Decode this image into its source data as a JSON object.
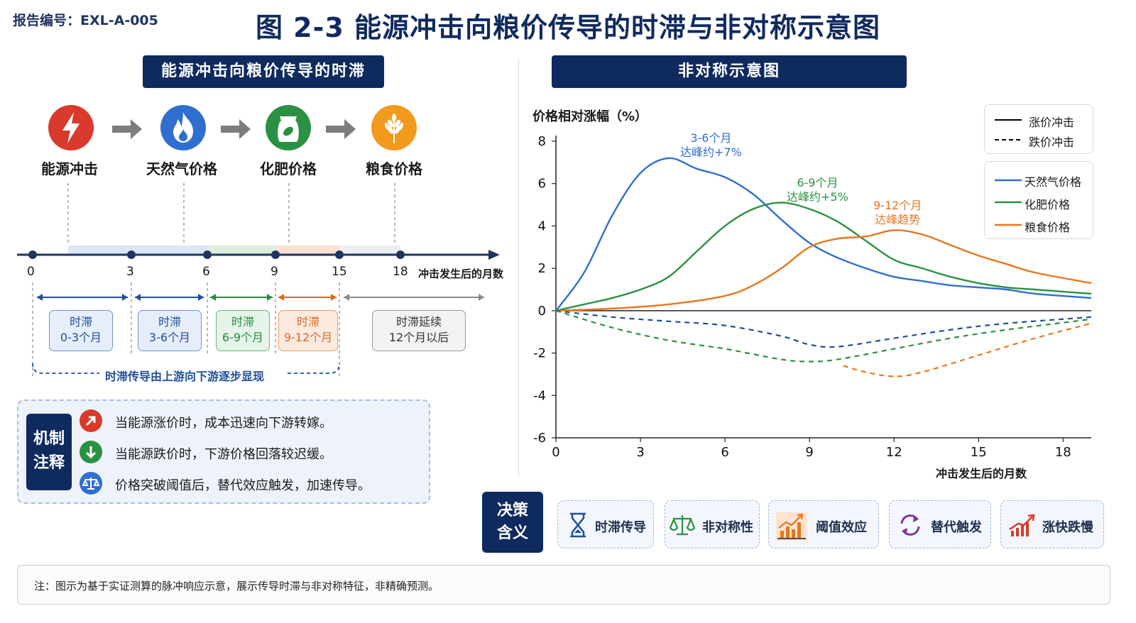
{
  "header": {
    "report_no": "报告编号：EXL-A-005",
    "title": "图 2-3 能源冲击向粮价传导的时滞与非对称示意图"
  },
  "left": {
    "banner": "能源冲击向粮价传导的时滞",
    "stages": [
      {
        "label": "能源冲击",
        "icon": "lightning-icon",
        "color": "#d93a2b"
      },
      {
        "label": "天然气价格",
        "icon": "flame-icon",
        "color": "#2f6fcf"
      },
      {
        "label": "化肥价格",
        "icon": "fertilizer-bag-icon",
        "color": "#2b9142"
      },
      {
        "label": "粮食价格",
        "icon": "wheat-icon",
        "color": "#f29a1c"
      }
    ],
    "timeline": {
      "ticks": [
        "0",
        "3",
        "6",
        "9",
        "15",
        "18"
      ],
      "axis_label": "冲击发生后的月数"
    },
    "lags": [
      {
        "line1": "时滞",
        "line2": "0-3个月",
        "color": "#1f4f9a"
      },
      {
        "line1": "时滞",
        "line2": "3-6个月",
        "color": "#1f4f9a"
      },
      {
        "line1": "时滞",
        "line2": "6-9个月",
        "color": "#2b8a3e"
      },
      {
        "line1": "时滞",
        "line2": "9-12个月",
        "color": "#d9691f"
      },
      {
        "line1": "时滞延续",
        "line2": "12个月以后",
        "color": "#333333"
      }
    ],
    "brace_label": "时滞传导由上游向下游逐步显现",
    "mechanism": {
      "label_line1": "机制",
      "label_line2": "注释",
      "items": [
        {
          "text": "当能源涨价时，成本迅速向下游转嫁。",
          "icon": "arrow-up-icon",
          "color": "#d93a2b"
        },
        {
          "text": "当能源跌价时，下游价格回落较迟缓。",
          "icon": "arrow-down-icon",
          "color": "#2b9142"
        },
        {
          "text": "价格突破阈值后，替代效应触发，加速传导。",
          "icon": "balance-scale-icon",
          "color": "#2f6fcf"
        }
      ]
    }
  },
  "right": {
    "banner": "非对称示意图",
    "legend_style": [
      {
        "label": "涨价冲击",
        "style": "solid"
      },
      {
        "label": "跌价冲击",
        "style": "dashed"
      }
    ],
    "annotations": [
      {
        "line1": "3-6个月",
        "line2": "达峰约+7%",
        "color": "#2f6fcf"
      },
      {
        "line1": "6-9个月",
        "line2": "达峰约+5%",
        "color": "#2b9142"
      },
      {
        "line1": "9-12个月",
        "line2": "达峰趋势",
        "color": "#e8761f"
      }
    ]
  },
  "chart_data": {
    "type": "line",
    "ylabel": "价格相对涨幅（%）",
    "xlabel": "冲击发生后的月数",
    "xlim": [
      0,
      19
    ],
    "ylim": [
      -6,
      8
    ],
    "xticks": [
      0,
      3,
      6,
      9,
      12,
      15,
      18
    ],
    "yticks": [
      8,
      6,
      4,
      2,
      0,
      -2,
      -4,
      -6
    ],
    "legend_position": "top-right",
    "series": [
      {
        "name": "天然气价格",
        "style": "solid",
        "color": "#2f6fcf",
        "points": [
          [
            0,
            0
          ],
          [
            1,
            1.8
          ],
          [
            2,
            4.5
          ],
          [
            3,
            6.5
          ],
          [
            4,
            7.2
          ],
          [
            5,
            6.7
          ],
          [
            6,
            6.3
          ],
          [
            7,
            5.5
          ],
          [
            8,
            4.3
          ],
          [
            9,
            3.2
          ],
          [
            10,
            2.5
          ],
          [
            11,
            2.0
          ],
          [
            12,
            1.6
          ],
          [
            13,
            1.4
          ],
          [
            14,
            1.2
          ],
          [
            15,
            1.1
          ],
          [
            16,
            1.0
          ],
          [
            17,
            0.8
          ],
          [
            19,
            0.6
          ]
        ]
      },
      {
        "name": "化肥价格",
        "style": "solid",
        "color": "#2b9142",
        "points": [
          [
            0,
            0
          ],
          [
            1,
            0.3
          ],
          [
            2,
            0.6
          ],
          [
            3,
            1.0
          ],
          [
            4,
            1.6
          ],
          [
            5,
            2.8
          ],
          [
            6,
            4.0
          ],
          [
            7,
            4.8
          ],
          [
            8,
            5.1
          ],
          [
            9,
            4.8
          ],
          [
            10,
            4.2
          ],
          [
            11,
            3.3
          ],
          [
            12,
            2.4
          ],
          [
            13,
            2.0
          ],
          [
            14,
            1.6
          ],
          [
            15,
            1.3
          ],
          [
            16,
            1.1
          ],
          [
            17,
            1.0
          ],
          [
            19,
            0.8
          ]
        ]
      },
      {
        "name": "粮食价格",
        "style": "solid",
        "color": "#e8761f",
        "points": [
          [
            0,
            0
          ],
          [
            2,
            0.1
          ],
          [
            4,
            0.3
          ],
          [
            6,
            0.7
          ],
          [
            7,
            1.2
          ],
          [
            8,
            2.0
          ],
          [
            9,
            3.0
          ],
          [
            10,
            3.4
          ],
          [
            11,
            3.5
          ],
          [
            12,
            3.8
          ],
          [
            13,
            3.6
          ],
          [
            14,
            3.1
          ],
          [
            15,
            2.6
          ],
          [
            16,
            2.2
          ],
          [
            17,
            1.8
          ],
          [
            19,
            1.3
          ]
        ]
      },
      {
        "name": "天然气价格",
        "style": "dashed",
        "color": "#1f4f9a",
        "points": [
          [
            0,
            0
          ],
          [
            2,
            -0.3
          ],
          [
            4,
            -0.5
          ],
          [
            6,
            -0.7
          ],
          [
            8,
            -1.2
          ],
          [
            9,
            -1.6
          ],
          [
            10,
            -1.7
          ],
          [
            12,
            -1.3
          ],
          [
            14,
            -0.9
          ],
          [
            16,
            -0.6
          ],
          [
            19,
            -0.3
          ]
        ]
      },
      {
        "name": "化肥价格",
        "style": "dashed",
        "color": "#2b9142",
        "points": [
          [
            0,
            0
          ],
          [
            2,
            -0.8
          ],
          [
            4,
            -1.4
          ],
          [
            6,
            -1.8
          ],
          [
            8,
            -2.3
          ],
          [
            9,
            -2.4
          ],
          [
            10,
            -2.3
          ],
          [
            12,
            -1.8
          ],
          [
            14,
            -1.3
          ],
          [
            16,
            -0.9
          ],
          [
            19,
            -0.4
          ]
        ]
      },
      {
        "name": "粮食价格",
        "style": "dashed",
        "color": "#e8761f",
        "points": [
          [
            10.2,
            -2.6
          ],
          [
            11,
            -2.9
          ],
          [
            12,
            -3.1
          ],
          [
            13,
            -2.9
          ],
          [
            15,
            -2.1
          ],
          [
            17,
            -1.3
          ],
          [
            19,
            -0.6
          ]
        ]
      }
    ]
  },
  "decision": {
    "label_line1": "决策",
    "label_line2": "含义",
    "items": [
      {
        "label": "时滞传导",
        "icon": "hourglass-icon",
        "color": "#1f4f9a"
      },
      {
        "label": "非对称性",
        "icon": "balance-scale-icon",
        "color": "#2b9142"
      },
      {
        "label": "阈值效应",
        "icon": "threshold-chart-icon",
        "color": "#e8761f"
      },
      {
        "label": "替代触发",
        "icon": "cycle-arrows-icon",
        "color": "#7a3aa0"
      },
      {
        "label": "涨快跌慢",
        "icon": "trend-up-icon",
        "color": "#d93a2b"
      }
    ]
  },
  "footer": {
    "note": "注：图示为基于实证测算的脉冲响应示意，展示传导时滞与非对称特征，非精确预测。"
  }
}
